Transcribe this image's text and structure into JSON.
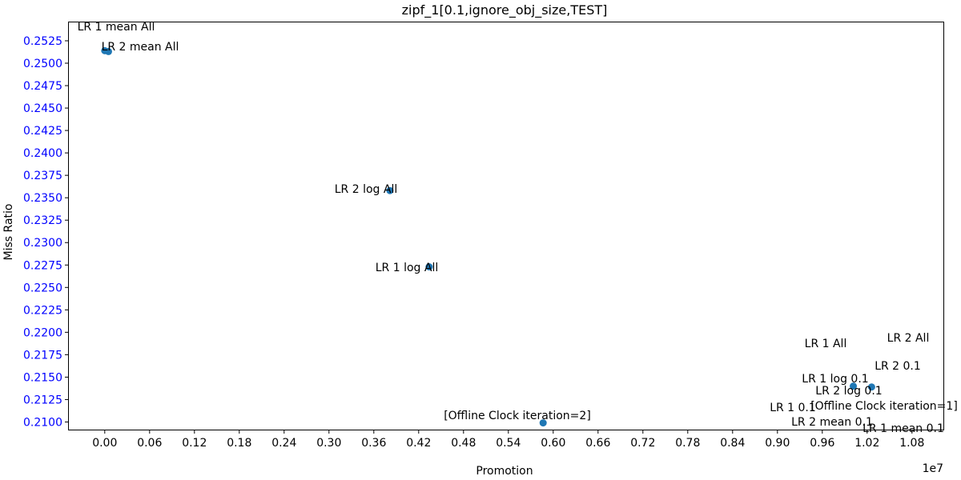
{
  "chart_data": {
    "type": "scatter",
    "title": "zipf_1[0.1,ignore_obj_size,TEST]",
    "xlabel": "Promotion",
    "ylabel": "Miss Ratio",
    "x_offset_label": "1e7",
    "xlim": [
      -0.048,
      1.122
    ],
    "ylim": [
      0.20915,
      0.25455
    ],
    "x_ticks": [
      0.0,
      0.06,
      0.12,
      0.18,
      0.24,
      0.3,
      0.36,
      0.42,
      0.48,
      0.54,
      0.6,
      0.66,
      0.72,
      0.78,
      0.84,
      0.9,
      0.96,
      1.02,
      1.08
    ],
    "x_tick_labels": [
      "0.00",
      "0.06",
      "0.12",
      "0.18",
      "0.24",
      "0.30",
      "0.36",
      "0.42",
      "0.48",
      "0.54",
      "0.60",
      "0.66",
      "0.72",
      "0.78",
      "0.84",
      "0.90",
      "0.96",
      "1.02",
      "1.08"
    ],
    "y_ticks": [
      0.21,
      0.2125,
      0.215,
      0.2175,
      0.22,
      0.2225,
      0.225,
      0.2275,
      0.23,
      0.2325,
      0.235,
      0.2375,
      0.24,
      0.2425,
      0.245,
      0.2475,
      0.25,
      0.2525
    ],
    "y_tick_labels": [
      "0.2100",
      "0.2125",
      "0.2150",
      "0.2175",
      "0.2200",
      "0.2225",
      "0.2250",
      "0.2275",
      "0.2300",
      "0.2325",
      "0.2350",
      "0.2375",
      "0.2400",
      "0.2425",
      "0.2450",
      "0.2475",
      "0.2500",
      "0.2525"
    ],
    "y_tick_color": "#0000ff",
    "marker_color": "#1f77b4",
    "grid": false,
    "points": [
      {
        "label": "LR 1 mean All",
        "x": 0.0,
        "y": 0.2514
      },
      {
        "label": "LR 2 mean All",
        "x": 0.005,
        "y": 0.2513
      },
      {
        "label": "LR 2 log All",
        "x": 0.3815,
        "y": 0.2358
      },
      {
        "label": "LR 1 log All",
        "x": 0.434,
        "y": 0.2273
      },
      {
        "label": "[Offline Clock iteration=2]",
        "x": 0.5865,
        "y": 0.2099
      },
      {
        "label": "LR 1 log 0.1",
        "x": 1.0015,
        "y": 0.214
      },
      {
        "label": "LR 2 log 0.1",
        "x": 1.026,
        "y": 0.2139
      }
    ],
    "annotations": [
      {
        "text": "LR 2 All"
      },
      {
        "text": "LR 1 All"
      },
      {
        "text": "LR 2 0.1"
      },
      {
        "text": "[Offline Clock iteration=1]"
      },
      {
        "text": "LR 1 0.1"
      },
      {
        "text": "LR 2 mean 0.1"
      },
      {
        "text": "LR 1 mean 0.1"
      }
    ]
  }
}
